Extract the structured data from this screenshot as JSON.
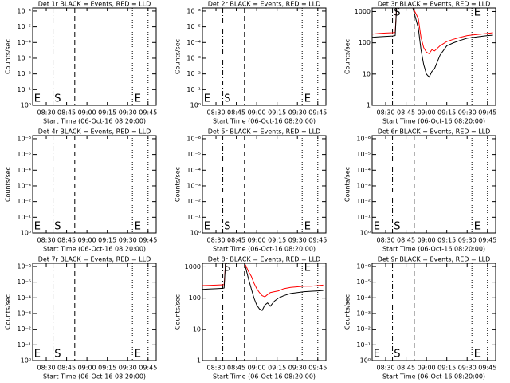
{
  "chart_data": [
    {
      "type": "line",
      "title": "Det 1r BLACK = Events, RED = LLD",
      "ylabel": "Counts/sec",
      "xlabel": "Start Time (06-Oct-16 08:20:00)",
      "xlim": [
        0,
        91
      ],
      "xticks": [
        {
          "value": 10,
          "label": "08:30"
        },
        {
          "value": 25,
          "label": "08:45"
        },
        {
          "value": 40,
          "label": "09:00"
        },
        {
          "value": 55,
          "label": "09:15"
        },
        {
          "value": 70,
          "label": "09:30"
        },
        {
          "value": 85,
          "label": "09:45"
        }
      ],
      "ylim": [
        0,
        6.2
      ],
      "yticks": [
        {
          "value": 0,
          "label": "10⁰"
        },
        {
          "value": 1,
          "label": "10⁻¹"
        },
        {
          "value": 2,
          "label": "10⁻²"
        },
        {
          "value": 3,
          "label": "10⁻³"
        },
        {
          "value": 4,
          "label": "10⁻⁴"
        },
        {
          "value": 5,
          "label": "10⁻⁵"
        },
        {
          "value": 6,
          "label": "10⁻⁶"
        }
      ],
      "vlines": [
        {
          "x": 15,
          "style": "dashdot"
        },
        {
          "x": 31,
          "style": "dashed"
        },
        {
          "x": 73.5,
          "style": "dotted"
        },
        {
          "x": 85,
          "style": "dotted"
        }
      ],
      "annotations": [
        {
          "text": "E",
          "x": 1
        },
        {
          "text": "S",
          "x": 16
        },
        {
          "text": "E",
          "x": 75
        }
      ]
    },
    {
      "type": "line",
      "title": "Det 2r BLACK = Events, RED = LLD",
      "ylabel": "Counts/sec",
      "xlabel": "Start Time (06-Oct-16 08:20:00)",
      "xlim": [
        0,
        91
      ],
      "xticks": [
        {
          "value": 10,
          "label": "08:30"
        },
        {
          "value": 25,
          "label": "08:45"
        },
        {
          "value": 40,
          "label": "09:00"
        },
        {
          "value": 55,
          "label": "09:15"
        },
        {
          "value": 70,
          "label": "09:30"
        },
        {
          "value": 85,
          "label": "09:45"
        }
      ],
      "ylim": [
        0,
        6.2
      ],
      "yticks": [
        {
          "value": 0,
          "label": "10⁰"
        },
        {
          "value": 1,
          "label": "10⁻¹"
        },
        {
          "value": 2,
          "label": "10⁻²"
        },
        {
          "value": 3,
          "label": "10⁻³"
        },
        {
          "value": 4,
          "label": "10⁻⁴"
        },
        {
          "value": 5,
          "label": "10⁻⁵"
        },
        {
          "value": 6,
          "label": "10⁻⁶"
        }
      ],
      "vlines": [
        {
          "x": 15,
          "style": "dashdot"
        },
        {
          "x": 31,
          "style": "dashed"
        },
        {
          "x": 73.5,
          "style": "dotted"
        },
        {
          "x": 85,
          "style": "dotted"
        }
      ],
      "annotations": [
        {
          "text": "E",
          "x": 1
        },
        {
          "text": "S",
          "x": 16
        },
        {
          "text": "E",
          "x": 75
        }
      ]
    },
    {
      "type": "line",
      "title": "Det 3r BLACK = Events, RED = LLD",
      "ylabel": "Counts/sec",
      "xlabel": "Start Time (06-Oct-16 08:20:00)",
      "xlim": [
        0,
        91
      ],
      "xticks": [
        {
          "value": 10,
          "label": "08:30"
        },
        {
          "value": 25,
          "label": "08:45"
        },
        {
          "value": 40,
          "label": "09:00"
        },
        {
          "value": 55,
          "label": "09:15"
        },
        {
          "value": 70,
          "label": "09:30"
        },
        {
          "value": 85,
          "label": "09:45"
        }
      ],
      "log": true,
      "ylim": [
        1,
        1300
      ],
      "yticks": [
        1,
        10,
        100,
        1000
      ],
      "x": [
        0,
        5,
        10,
        15,
        17,
        18,
        30,
        31,
        34,
        36,
        38,
        40,
        42,
        44,
        46,
        50,
        55,
        60,
        65,
        70,
        75,
        80,
        85,
        89
      ],
      "series": [
        {
          "color": "#ff0000",
          "values": [
            190,
            200,
            205,
            210,
            215,
            1300,
            1300,
            1100,
            600,
            150,
            70,
            50,
            45,
            60,
            55,
            80,
            110,
            130,
            150,
            170,
            180,
            190,
            200,
            210
          ]
        },
        {
          "color": "#000000",
          "values": [
            150,
            155,
            160,
            165,
            170,
            1300,
            1300,
            900,
            300,
            60,
            20,
            10,
            8,
            12,
            15,
            40,
            80,
            100,
            120,
            140,
            150,
            160,
            170,
            175
          ]
        }
      ],
      "vlines": [
        {
          "x": 15,
          "style": "dashdot"
        },
        {
          "x": 31,
          "style": "dashed"
        },
        {
          "x": 73.5,
          "style": "dotted"
        },
        {
          "x": 85,
          "style": "dotted"
        }
      ],
      "annotations": [
        {
          "text": "S",
          "x": 16
        },
        {
          "text": "E",
          "x": 75
        }
      ]
    },
    {
      "type": "line",
      "title": "Det 4r BLACK = Events, RED = LLD",
      "ylabel": "Counts/sec",
      "xlabel": "Start Time (06-Oct-16 08:20:00)",
      "xlim": [
        0,
        91
      ],
      "xticks": [
        {
          "value": 10,
          "label": "08:30"
        },
        {
          "value": 25,
          "label": "08:45"
        },
        {
          "value": 40,
          "label": "09:00"
        },
        {
          "value": 55,
          "label": "09:15"
        },
        {
          "value": 70,
          "label": "09:30"
        },
        {
          "value": 85,
          "label": "09:45"
        }
      ],
      "ylim": [
        0,
        6.2
      ],
      "yticks": [
        {
          "value": 0,
          "label": "10⁰"
        },
        {
          "value": 1,
          "label": "10⁻¹"
        },
        {
          "value": 2,
          "label": "10⁻²"
        },
        {
          "value": 3,
          "label": "10⁻³"
        },
        {
          "value": 4,
          "label": "10⁻⁴"
        },
        {
          "value": 5,
          "label": "10⁻⁵"
        },
        {
          "value": 6,
          "label": "10⁻⁶"
        }
      ],
      "vlines": [
        {
          "x": 15,
          "style": "dashdot"
        },
        {
          "x": 31,
          "style": "dashed"
        },
        {
          "x": 73.5,
          "style": "dotted"
        },
        {
          "x": 85,
          "style": "dotted"
        }
      ],
      "annotations": [
        {
          "text": "E",
          "x": 1
        },
        {
          "text": "S",
          "x": 16
        },
        {
          "text": "E",
          "x": 75
        }
      ]
    },
    {
      "type": "line",
      "title": "Det 5r BLACK = Events, RED = LLD",
      "ylabel": "Counts/sec",
      "xlabel": "Start Time (06-Oct-16 08:20:00)",
      "xlim": [
        0,
        91
      ],
      "xticks": [
        {
          "value": 10,
          "label": "08:30"
        },
        {
          "value": 25,
          "label": "08:45"
        },
        {
          "value": 40,
          "label": "09:00"
        },
        {
          "value": 55,
          "label": "09:15"
        },
        {
          "value": 70,
          "label": "09:30"
        },
        {
          "value": 85,
          "label": "09:45"
        }
      ],
      "ylim": [
        0,
        6.2
      ],
      "yticks": [
        {
          "value": 0,
          "label": "10⁰"
        },
        {
          "value": 1,
          "label": "10⁻¹"
        },
        {
          "value": 2,
          "label": "10⁻²"
        },
        {
          "value": 3,
          "label": "10⁻³"
        },
        {
          "value": 4,
          "label": "10⁻⁴"
        },
        {
          "value": 5,
          "label": "10⁻⁵"
        },
        {
          "value": 6,
          "label": "10⁻⁶"
        }
      ],
      "vlines": [
        {
          "x": 15,
          "style": "dashdot"
        },
        {
          "x": 31,
          "style": "dashed"
        },
        {
          "x": 73.5,
          "style": "dotted"
        },
        {
          "x": 85,
          "style": "dotted"
        }
      ],
      "annotations": [
        {
          "text": "E",
          "x": 1
        },
        {
          "text": "S",
          "x": 16
        },
        {
          "text": "E",
          "x": 75
        }
      ]
    },
    {
      "type": "line",
      "title": "Det 6r BLACK = Events, RED = LLD",
      "ylabel": "Counts/sec",
      "xlabel": "Start Time (06-Oct-16 08:20:00)",
      "xlim": [
        0,
        91
      ],
      "xticks": [
        {
          "value": 10,
          "label": "08:30"
        },
        {
          "value": 25,
          "label": "08:45"
        },
        {
          "value": 40,
          "label": "09:00"
        },
        {
          "value": 55,
          "label": "09:15"
        },
        {
          "value": 70,
          "label": "09:30"
        },
        {
          "value": 85,
          "label": "09:45"
        }
      ],
      "ylim": [
        0,
        6.2
      ],
      "yticks": [
        {
          "value": 0,
          "label": "10⁰"
        },
        {
          "value": 1,
          "label": "10⁻¹"
        },
        {
          "value": 2,
          "label": "10⁻²"
        },
        {
          "value": 3,
          "label": "10⁻³"
        },
        {
          "value": 4,
          "label": "10⁻⁴"
        },
        {
          "value": 5,
          "label": "10⁻⁵"
        },
        {
          "value": 6,
          "label": "10⁻⁶"
        }
      ],
      "vlines": [
        {
          "x": 15,
          "style": "dashdot"
        },
        {
          "x": 31,
          "style": "dashed"
        },
        {
          "x": 73.5,
          "style": "dotted"
        },
        {
          "x": 85,
          "style": "dotted"
        }
      ],
      "annotations": [
        {
          "text": "E",
          "x": 1
        },
        {
          "text": "S",
          "x": 16
        },
        {
          "text": "E",
          "x": 75
        }
      ]
    },
    {
      "type": "line",
      "title": "Det 7r BLACK = Events, RED = LLD",
      "ylabel": "Counts/sec",
      "xlabel": "Start Time (06-Oct-16 08:20:00)",
      "xlim": [
        0,
        91
      ],
      "xticks": [
        {
          "value": 10,
          "label": "08:30"
        },
        {
          "value": 25,
          "label": "08:45"
        },
        {
          "value": 40,
          "label": "09:00"
        },
        {
          "value": 55,
          "label": "09:15"
        },
        {
          "value": 70,
          "label": "09:30"
        },
        {
          "value": 85,
          "label": "09:45"
        }
      ],
      "ylim": [
        0,
        6.2
      ],
      "yticks": [
        {
          "value": 0,
          "label": "10⁰"
        },
        {
          "value": 1,
          "label": "10⁻¹"
        },
        {
          "value": 2,
          "label": "10⁻²"
        },
        {
          "value": 3,
          "label": "10⁻³"
        },
        {
          "value": 4,
          "label": "10⁻⁴"
        },
        {
          "value": 5,
          "label": "10⁻⁵"
        },
        {
          "value": 6,
          "label": "10⁻⁶"
        }
      ],
      "vlines": [
        {
          "x": 15,
          "style": "dashdot"
        },
        {
          "x": 31,
          "style": "dashed"
        },
        {
          "x": 73.5,
          "style": "dotted"
        },
        {
          "x": 85,
          "style": "dotted"
        }
      ],
      "annotations": [
        {
          "text": "E",
          "x": 1
        },
        {
          "text": "S",
          "x": 16
        },
        {
          "text": "E",
          "x": 75
        }
      ]
    },
    {
      "type": "line",
      "title": "Det 8r BLACK = Events, RED = LLD",
      "ylabel": "Counts/sec",
      "xlabel": "Start Time (06-Oct-16 08:20:00)",
      "xlim": [
        0,
        91
      ],
      "xticks": [
        {
          "value": 10,
          "label": "08:30"
        },
        {
          "value": 25,
          "label": "08:45"
        },
        {
          "value": 40,
          "label": "09:00"
        },
        {
          "value": 55,
          "label": "09:15"
        },
        {
          "value": 70,
          "label": "09:30"
        },
        {
          "value": 85,
          "label": "09:45"
        }
      ],
      "log": true,
      "ylim": [
        1,
        1300
      ],
      "yticks": [
        1,
        10,
        100,
        1000
      ],
      "x": [
        0,
        5,
        10,
        15,
        16,
        17,
        31,
        32,
        34,
        36,
        38,
        40,
        42,
        44,
        46,
        48,
        50,
        53,
        56,
        60,
        65,
        70,
        75,
        80,
        85,
        89
      ],
      "series": [
        {
          "color": "#ff0000",
          "values": [
            250,
            255,
            260,
            265,
            270,
            1300,
            1300,
            1100,
            700,
            500,
            300,
            200,
            150,
            120,
            110,
            130,
            150,
            160,
            170,
            200,
            220,
            230,
            240,
            240,
            250,
            260
          ]
        },
        {
          "color": "#000000",
          "values": [
            190,
            195,
            200,
            205,
            210,
            1300,
            1300,
            900,
            400,
            200,
            100,
            60,
            45,
            40,
            60,
            70,
            55,
            80,
            100,
            120,
            140,
            150,
            160,
            165,
            170,
            175
          ]
        }
      ],
      "vlines": [
        {
          "x": 15,
          "style": "dashdot"
        },
        {
          "x": 31,
          "style": "dashed"
        },
        {
          "x": 73.5,
          "style": "dotted"
        },
        {
          "x": 85,
          "style": "dotted"
        }
      ],
      "annotations": [
        {
          "text": "S",
          "x": 16
        },
        {
          "text": "E",
          "x": 75
        }
      ]
    },
    {
      "type": "line",
      "title": "Det 9r BLACK = Events, RED = LLD",
      "ylabel": "Counts/sec",
      "xlabel": "Start Time (06-Oct-16 08:20:00)",
      "xlim": [
        0,
        91
      ],
      "xticks": [
        {
          "value": 10,
          "label": "08:30"
        },
        {
          "value": 25,
          "label": "08:45"
        },
        {
          "value": 40,
          "label": "09:00"
        },
        {
          "value": 55,
          "label": "09:15"
        },
        {
          "value": 70,
          "label": "09:30"
        },
        {
          "value": 85,
          "label": "09:45"
        }
      ],
      "ylim": [
        0,
        6.2
      ],
      "yticks": [
        {
          "value": 0,
          "label": "10⁰"
        },
        {
          "value": 1,
          "label": "10⁻¹"
        },
        {
          "value": 2,
          "label": "10⁻²"
        },
        {
          "value": 3,
          "label": "10⁻³"
        },
        {
          "value": 4,
          "label": "10⁻⁴"
        },
        {
          "value": 5,
          "label": "10⁻⁵"
        },
        {
          "value": 6,
          "label": "10⁻⁶"
        }
      ],
      "vlines": [
        {
          "x": 15,
          "style": "dashdot"
        },
        {
          "x": 31,
          "style": "dashed"
        },
        {
          "x": 73.5,
          "style": "dotted"
        },
        {
          "x": 85,
          "style": "dotted"
        }
      ],
      "annotations": [
        {
          "text": "E",
          "x": 1
        },
        {
          "text": "S",
          "x": 16
        },
        {
          "text": "E",
          "x": 75
        }
      ]
    }
  ]
}
